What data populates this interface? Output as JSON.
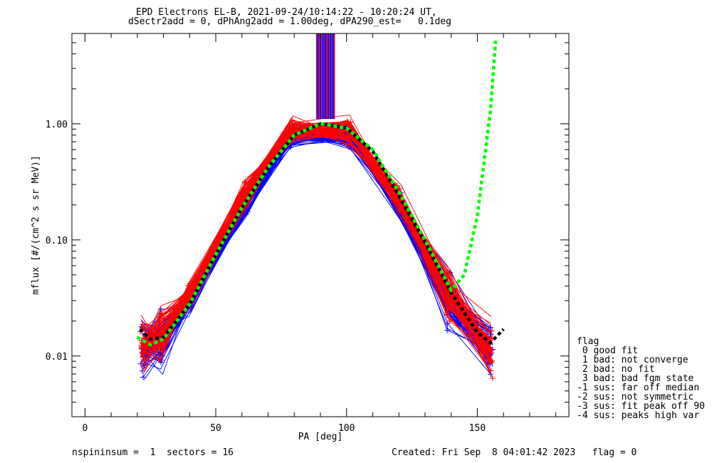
{
  "header": {
    "title_line1": "EPD Electrons EL-B, 2021-09-24/10:14:22 - 10:20:24 UT,",
    "title_line2": "dSectr2add = 0, dPhAng2add = 1.00deg, dPA290_est=   0.1deg"
  },
  "footer": {
    "left": "nspininsum =  1  sectors = 16",
    "right": "Created: Fri Sep  8 04:01:42 2023   flag = 0"
  },
  "legend": {
    "title": "flag",
    "items": [
      " 0 good fit",
      " 1 bad: not converge",
      " 2 bad: no fit",
      " 3 bad: bad fgm state",
      "-1 sus: far off median",
      "-2 sus: not symmetric",
      "-3 sus: fit peak off 90",
      "-4 sus: peaks high var"
    ]
  },
  "colors": {
    "series_a": "#0000ff",
    "series_b": "#ff0000",
    "fit_fine": "#00ff00",
    "fit_median": "#000000"
  },
  "chart_data": {
    "type": "line",
    "xlabel": "PA [deg]",
    "ylabel": "mflux [#/(cm^2 s sr MeV)]",
    "xlim": [
      -5,
      185
    ],
    "ylim": [
      0.003,
      6
    ],
    "yscale": "log",
    "xticks": [
      0,
      50,
      100,
      150
    ],
    "xtick_labels": [
      "0",
      "50",
      "100",
      "150"
    ],
    "yticks": [
      0.01,
      0.1,
      1.0
    ],
    "ytick_labels": [
      "0.01",
      "0.10",
      "1.00"
    ],
    "series": [
      {
        "color": "#0000ff",
        "marker": "+",
        "x": [
          22,
          29,
          40,
          61,
          79,
          101,
          120,
          139,
          155
        ],
        "y": [
          0.011,
          0.013,
          0.03,
          0.21,
          0.8,
          0.8,
          0.2,
          0.03,
          0.011
        ]
      },
      {
        "color": "#ff0000",
        "marker": "+",
        "x": [
          22,
          29,
          40,
          61,
          79,
          101,
          120,
          139,
          155
        ],
        "y": [
          0.012,
          0.015,
          0.034,
          0.24,
          0.88,
          0.88,
          0.23,
          0.034,
          0.012
        ]
      },
      {
        "color": "#00ff00",
        "style": "dotted",
        "x": [
          20,
          25,
          30,
          40,
          50,
          60,
          70,
          80,
          90,
          100,
          110,
          120,
          130,
          140,
          145,
          150,
          155,
          157
        ],
        "y": [
          0.0145,
          0.0125,
          0.014,
          0.028,
          0.075,
          0.19,
          0.42,
          0.8,
          1.0,
          0.92,
          0.6,
          0.26,
          0.1,
          0.037,
          0.05,
          0.16,
          1.3,
          5.2
        ]
      },
      {
        "color": "#000000",
        "style": "dotted",
        "x": [
          21,
          25,
          30,
          40,
          50,
          60,
          70,
          80,
          90,
          100,
          110,
          120,
          130,
          140,
          150,
          155,
          160
        ],
        "y": [
          0.017,
          0.014,
          0.0145,
          0.028,
          0.075,
          0.19,
          0.42,
          0.8,
          1.0,
          0.92,
          0.58,
          0.24,
          0.095,
          0.035,
          0.016,
          0.013,
          0.017
        ]
      }
    ]
  }
}
